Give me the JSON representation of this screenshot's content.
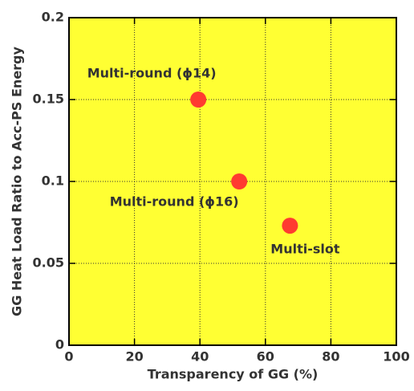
{
  "chart_data": {
    "type": "scatter",
    "xlabel": "Transparency of GG (%)",
    "ylabel": "GG Heat Load Ratio to Acc-PS Energy",
    "x": [
      39.5,
      52,
      67.5
    ],
    "values": [
      0.15,
      0.1,
      0.073
    ],
    "point_labels": [
      "Multi-round (ϕ14)",
      "Multi-round (ϕ16)",
      "Multi-slot"
    ],
    "color": "#ff3b30",
    "background": "#ffff33",
    "xlim": [
      0,
      100
    ],
    "xticks": [
      0,
      20,
      40,
      60,
      80,
      100
    ],
    "ylim": [
      0,
      0.2
    ],
    "yticks": [
      0,
      0.05,
      0.1,
      0.15,
      0.2
    ],
    "grid": true
  }
}
